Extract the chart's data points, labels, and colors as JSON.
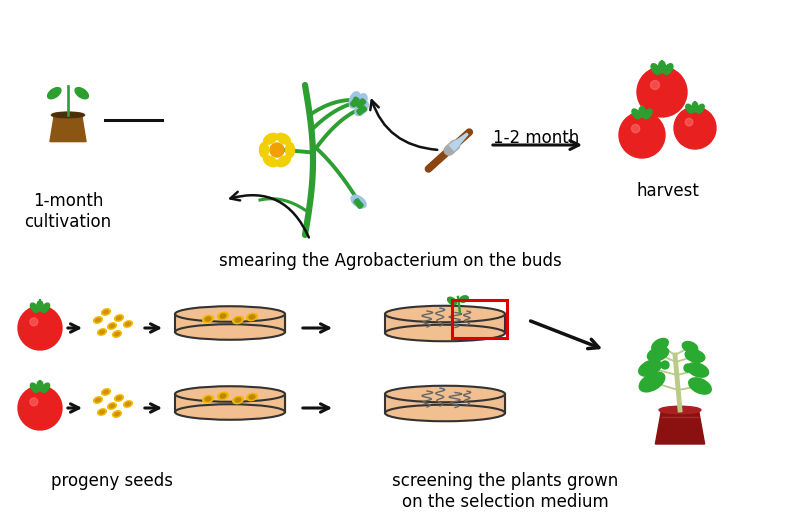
{
  "bg_color": "#ffffff",
  "text_color": "#000000",
  "labels": {
    "cultivation": "1-month\ncultivation",
    "month": "1-2 month",
    "harvest": "harvest",
    "smearing": "smearing the Agrobacterium on the buds",
    "progeny": "progeny seeds",
    "screening": "screening the plants grown\non the selection medium"
  },
  "font_size_main": 12,
  "tomato_red": "#e82020",
  "tomato_green": "#3aaa35",
  "plant_green": "#2d9e30",
  "pot_brown": "#8B5513",
  "seed_color": "#f0b800",
  "dish_fill": "#f2c090",
  "dish_edge": "#222222",
  "root_color": "#666666",
  "brush_brown": "#8B4513",
  "arrow_color": "#111111",
  "highlight_red": "#dd0000"
}
